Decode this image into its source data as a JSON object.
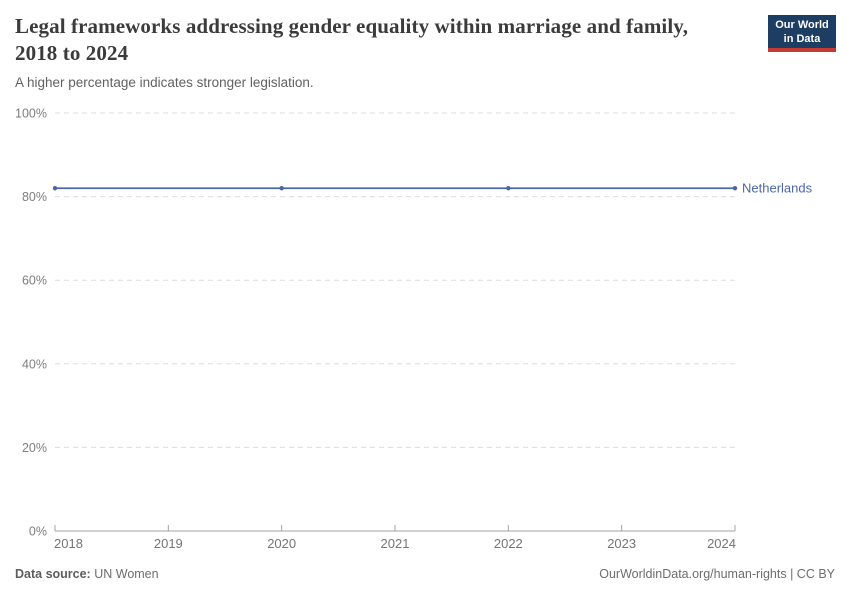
{
  "header": {
    "title": "Legal frameworks addressing gender equality within marriage and family, 2018 to 2024",
    "subtitle": "A higher percentage indicates stronger legislation.",
    "logo": {
      "line1": "Our World",
      "line2": "in Data",
      "bg_color": "#1d3d63",
      "accent_color": "#c53a33"
    }
  },
  "chart_data": {
    "type": "line",
    "title": "Legal frameworks addressing gender equality within marriage and family",
    "x": [
      2018,
      2020,
      2022,
      2024
    ],
    "series": [
      {
        "name": "Netherlands",
        "values": [
          82,
          82,
          82,
          82
        ],
        "color": "#4a67a3"
      }
    ],
    "xlim": [
      2018,
      2024
    ],
    "ylim": [
      0,
      100
    ],
    "xticks": [
      2018,
      2019,
      2020,
      2021,
      2022,
      2023,
      2024
    ],
    "yticks": [
      0,
      20,
      40,
      60,
      80,
      100
    ],
    "ytick_suffix": "%",
    "grid": "horizontal-dashed",
    "legend_position": "line-end-label"
  },
  "footer": {
    "source_label": "Data source:",
    "source_value": "UN Women",
    "attribution": "OurWorldinData.org/human-rights | CC BY"
  }
}
